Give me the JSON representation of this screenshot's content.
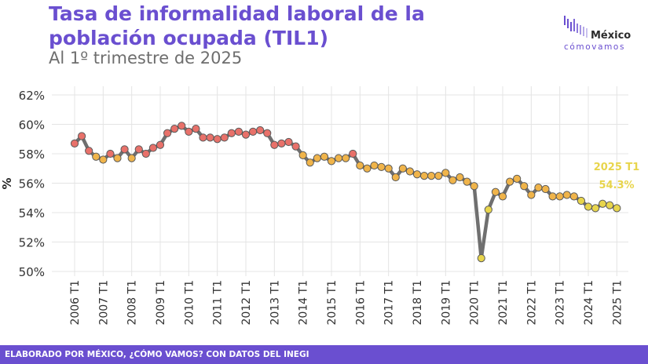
{
  "header": {
    "title": "Tasa de informalidad laboral de la población ocupada (TIL1)",
    "subtitle": "Al 1º trimestre de 2025"
  },
  "logo": {
    "name": "México",
    "tagline": "cómovamos"
  },
  "footer": {
    "text": "ELABORADO POR MÉXICO, ¿CÓMO VAMOS? CON DATOS DEL INEGI"
  },
  "colors": {
    "title": "#6a4fd0",
    "line": "#6f6f6f",
    "high": "#e8716a",
    "mid": "#f0b44a",
    "low": "#e8d54c",
    "annotation": "#e8d54c",
    "footer_bg": "#6a4fd0"
  },
  "chart_data": {
    "type": "line",
    "ylabel": "%",
    "xlabel": "",
    "ylim": [
      50,
      62
    ],
    "yticks": [
      "50%",
      "52%",
      "54%",
      "56%",
      "58%",
      "60%",
      "62%"
    ],
    "xticks": [
      "2006 T1",
      "2007 T1",
      "2008 T1",
      "2009 T1",
      "2010 T1",
      "2011 T1",
      "2012 T1",
      "2013 T1",
      "2014 T1",
      "2015 T1",
      "2016 T1",
      "2017 T1",
      "2018 T1",
      "2019 T1",
      "2020 T1",
      "2021 T1",
      "2022 T1",
      "2023 T1",
      "2024 T1",
      "2025 T1"
    ],
    "grid": true,
    "annotation": {
      "label": "2025 T1",
      "value": "54.3%"
    },
    "series": [
      {
        "values": [
          58.7,
          59.2,
          58.2,
          57.8,
          57.6,
          58.0,
          57.7,
          58.3,
          57.7,
          58.3,
          58.0,
          58.4,
          58.6,
          59.4,
          59.7,
          59.9,
          59.5,
          59.7,
          59.1,
          59.1,
          59.0,
          59.1,
          59.4,
          59.5,
          59.3,
          59.5,
          59.6,
          59.4,
          58.6,
          58.7,
          58.8,
          58.5,
          57.9,
          57.4,
          57.7,
          57.8,
          57.5,
          57.7,
          57.7,
          58.0,
          57.2,
          57.0,
          57.2,
          57.1,
          57.0,
          56.4,
          57.0,
          56.8,
          56.6,
          56.5,
          56.5,
          56.5,
          56.7,
          56.2,
          56.4,
          56.1,
          55.8,
          50.9,
          54.2,
          55.4,
          55.1,
          56.1,
          56.3,
          55.8,
          55.2,
          55.7,
          55.6,
          55.1,
          55.1,
          55.2,
          55.1,
          54.8,
          54.4,
          54.3,
          54.6,
          54.5,
          54.3
        ]
      }
    ]
  }
}
